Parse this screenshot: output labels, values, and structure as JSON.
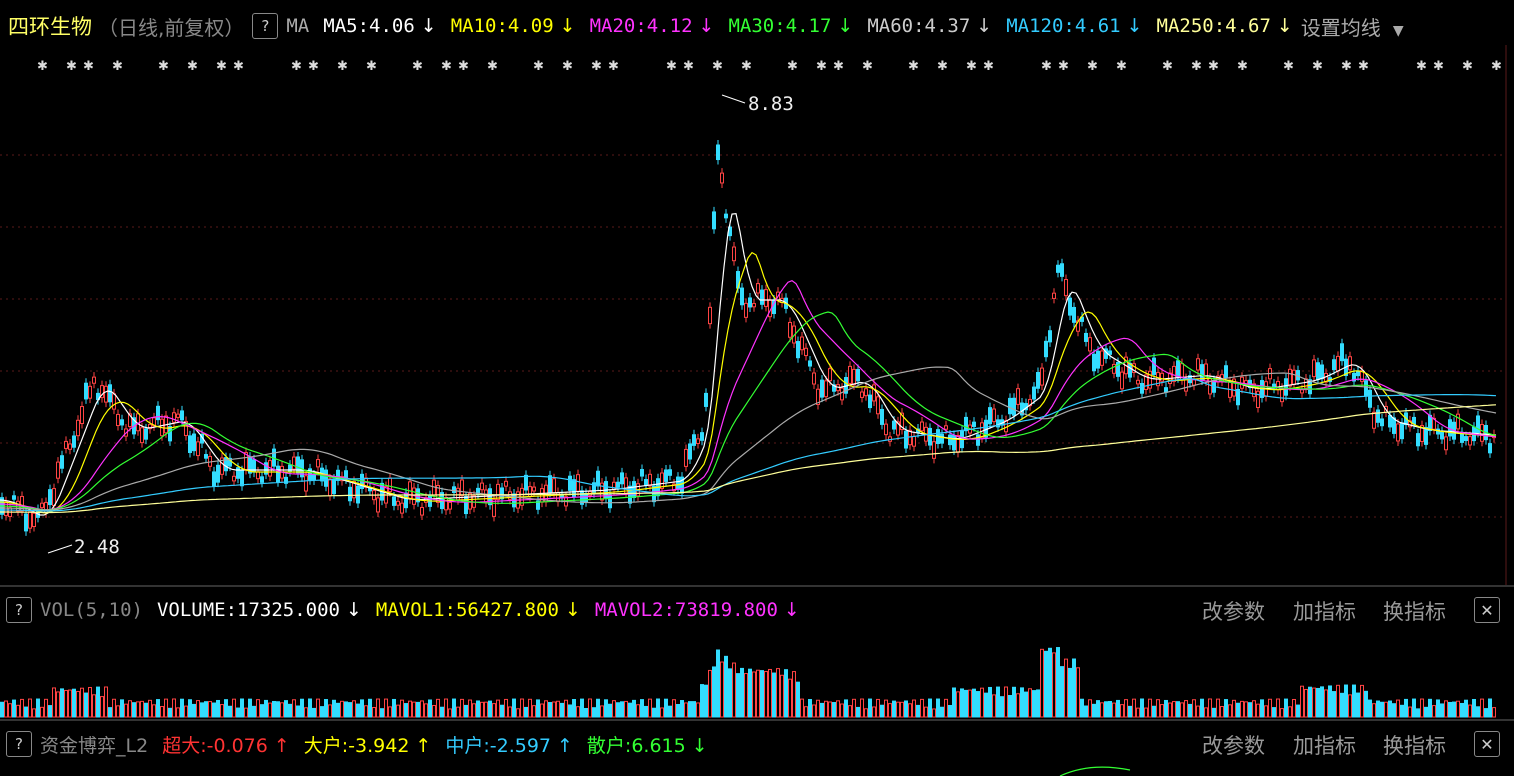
{
  "header": {
    "stock_name": "四环生物",
    "period_note": "（日线,前复权）",
    "help": "?",
    "indicator": "MA",
    "ma": [
      {
        "label": "MA5:4.06",
        "arrow": "↓",
        "color": "#ffffff"
      },
      {
        "label": "MA10:4.09",
        "arrow": "↓",
        "color": "#ffff00"
      },
      {
        "label": "MA20:4.12",
        "arrow": "↓",
        "color": "#ff33ff"
      },
      {
        "label": "MA30:4.17",
        "arrow": "↓",
        "color": "#33ff33"
      },
      {
        "label": "MA60:4.37",
        "arrow": "↓",
        "color": "#cccccc"
      },
      {
        "label": "MA120:4.61",
        "arrow": "↓",
        "color": "#33ccff"
      },
      {
        "label": "MA250:4.67",
        "arrow": "↓",
        "color": "#ffff99"
      }
    ],
    "settings": "设置均线"
  },
  "price_chart": {
    "high_label": "8.83",
    "low_label": "2.48",
    "high": 8.83,
    "low": 2.48
  },
  "volume_panel": {
    "help": "?",
    "name": "VOL(5,10)",
    "items": [
      {
        "label": "VOLUME:17325.000",
        "arrow": "↓",
        "color": "#ffffff"
      },
      {
        "label": "MAVOL1:56427.800",
        "arrow": "↓",
        "color": "#ffff00"
      },
      {
        "label": "MAVOL2:73819.800",
        "arrow": "↓",
        "color": "#ff33ff"
      }
    ],
    "btn_params": "改参数",
    "btn_add": "加指标",
    "btn_switch": "换指标",
    "close": "✕"
  },
  "fund_panel": {
    "help": "?",
    "name": "资金博弈_L2",
    "items": [
      {
        "label": "超大:-0.076",
        "arrow": "↑",
        "color": "#ff3333"
      },
      {
        "label": "大户:-3.942",
        "arrow": "↑",
        "color": "#ffff00"
      },
      {
        "label": "中户:-2.597",
        "arrow": "↑",
        "color": "#33ccff"
      },
      {
        "label": "散户:6.615",
        "arrow": "↓",
        "color": "#33ff33"
      }
    ],
    "btn_params": "改参数",
    "btn_add": "加指标",
    "btn_switch": "换指标",
    "close": "✕"
  }
}
